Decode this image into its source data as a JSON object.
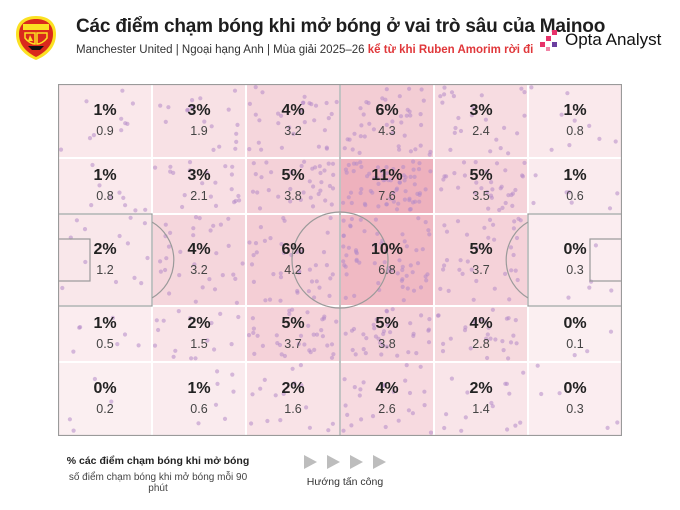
{
  "header": {
    "title": "Các điểm chạm bóng khi mở bóng ở vai trò sâu của Mainoo",
    "subtitle_main": "Manchester United | Ngoại hạng Anh | Mùa giải 2025–26 ",
    "subtitle_highlight": "kể từ khi Ruben Amorim rời đi",
    "brand": "Opta Analyst",
    "crest_icon": "manchester-united-crest",
    "colors": {
      "highlight": "#e0383b",
      "brand_pink": "#e8336b",
      "crest_red": "#da291c",
      "crest_gold": "#fbe122"
    }
  },
  "grid": {
    "rows": [
      [
        {
          "pct": "1%",
          "val": "0.9"
        },
        {
          "pct": "3%",
          "val": "1.9"
        },
        {
          "pct": "4%",
          "val": "3.2"
        },
        {
          "pct": "6%",
          "val": "4.3"
        },
        {
          "pct": "3%",
          "val": "2.4"
        },
        {
          "pct": "1%",
          "val": "0.8"
        }
      ],
      [
        {
          "pct": "1%",
          "val": "0.8"
        },
        {
          "pct": "3%",
          "val": "2.1"
        },
        {
          "pct": "5%",
          "val": "3.8"
        },
        {
          "pct": "11%",
          "val": "7.6"
        },
        {
          "pct": "5%",
          "val": "3.5"
        },
        {
          "pct": "1%",
          "val": "0.6"
        }
      ],
      [
        {
          "pct": "2%",
          "val": "1.2"
        },
        {
          "pct": "4%",
          "val": "3.2"
        },
        {
          "pct": "6%",
          "val": "4.2"
        },
        {
          "pct": "10%",
          "val": "6.8"
        },
        {
          "pct": "5%",
          "val": "3.7"
        },
        {
          "pct": "0%",
          "val": "0.3"
        }
      ],
      [
        {
          "pct": "1%",
          "val": "0.5"
        },
        {
          "pct": "2%",
          "val": "1.5"
        },
        {
          "pct": "5%",
          "val": "3.7"
        },
        {
          "pct": "5%",
          "val": "3.8"
        },
        {
          "pct": "4%",
          "val": "2.8"
        },
        {
          "pct": "0%",
          "val": "0.1"
        }
      ],
      [
        {
          "pct": "0%",
          "val": "0.2"
        },
        {
          "pct": "1%",
          "val": "0.6"
        },
        {
          "pct": "2%",
          "val": "1.6"
        },
        {
          "pct": "4%",
          "val": "2.6"
        },
        {
          "pct": "2%",
          "val": "1.4"
        },
        {
          "pct": "0%",
          "val": "0.3"
        }
      ]
    ]
  },
  "legend": {
    "line1": "% các điểm chạm bóng khi mở bóng",
    "line2": "số điểm chạm bóng khi mở bóng mỗi 90 phút",
    "direction": "Hướng tấn công",
    "arrow_icon": "play-triangle-icon"
  }
}
